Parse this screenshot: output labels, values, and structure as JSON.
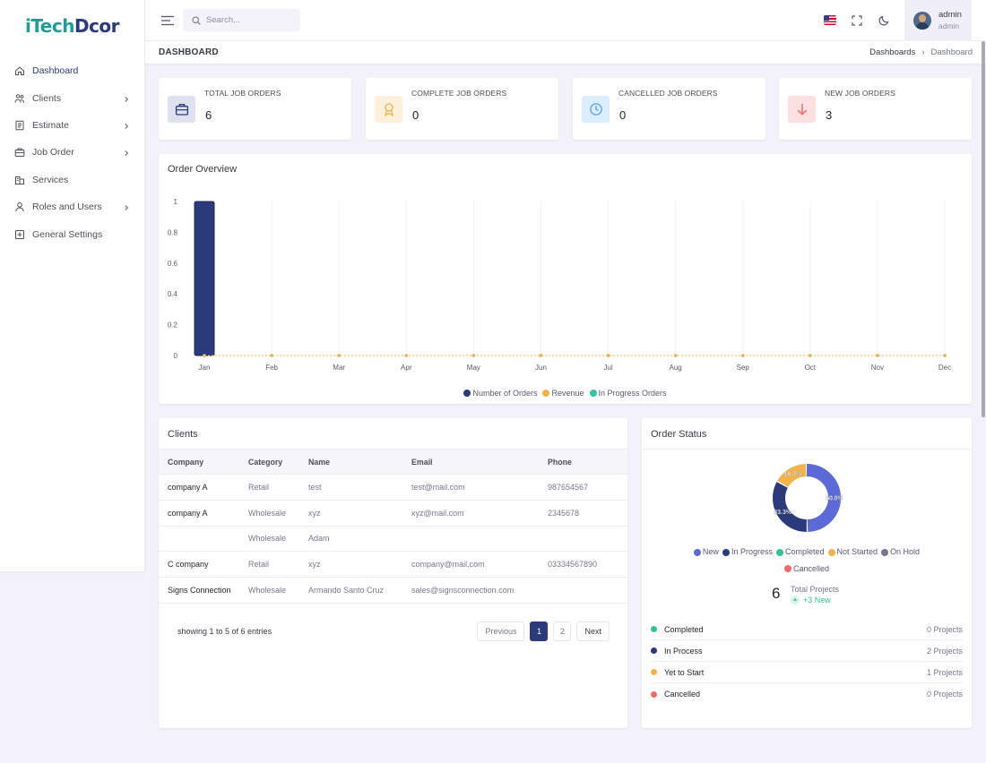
{
  "brand": {
    "logo_a": "iTech",
    "logo_b": "Dcor"
  },
  "sidebar": {
    "items": [
      {
        "label": "Dashboard",
        "icon": "home-icon",
        "has_submenu": false
      },
      {
        "label": "Clients",
        "icon": "users-icon",
        "has_submenu": true
      },
      {
        "label": "Estimate",
        "icon": "document-icon",
        "has_submenu": true
      },
      {
        "label": "Job Order",
        "icon": "briefcase-icon",
        "has_submenu": true
      },
      {
        "label": "Services",
        "icon": "building-icon",
        "has_submenu": false
      },
      {
        "label": "Roles and Users",
        "icon": "user-icon",
        "has_submenu": true
      },
      {
        "label": "General Settings",
        "icon": "plus-square-icon",
        "has_submenu": false
      }
    ]
  },
  "topbar": {
    "search_placeholder": "Search...",
    "user": {
      "name": "admin",
      "role": "admin"
    }
  },
  "page": {
    "title": "DASHBOARD",
    "breadcrumb": [
      "Dashboards",
      "Dashboard"
    ]
  },
  "stats": [
    {
      "label": "TOTAL JOB ORDERS",
      "value": "6",
      "icon": "briefcase-icon",
      "color": "#2a3a7a",
      "bg": "#dfe1ef"
    },
    {
      "label": "COMPLETE JOB ORDERS",
      "value": "0",
      "icon": "award-icon",
      "color": "#f1b44c",
      "bg": "#fdf0db"
    },
    {
      "label": "CANCELLED JOB ORDERS",
      "value": "0",
      "icon": "clock-icon",
      "color": "#50a5f1",
      "bg": "#dcedfc"
    },
    {
      "label": "NEW JOB ORDERS",
      "value": "3",
      "icon": "arrow-down-icon",
      "color": "#f46a6a",
      "bg": "#fde1e1"
    }
  ],
  "order_overview": {
    "title": "Order Overview",
    "legend": [
      {
        "name": "Number of Orders",
        "color": "#2a3a7a"
      },
      {
        "name": "Revenue",
        "color": "#f1b44c"
      },
      {
        "name": "In Progress Orders",
        "color": "#34c3a0"
      }
    ]
  },
  "chart_data": {
    "type": "bar",
    "categories": [
      "Jan",
      "Feb",
      "Mar",
      "Apr",
      "May",
      "Jun",
      "Jul",
      "Aug",
      "Sep",
      "Oct",
      "Nov",
      "Dec"
    ],
    "series": [
      {
        "name": "Number of Orders",
        "type": "bar",
        "color": "#2a3a7a",
        "values": [
          1,
          0,
          0,
          0,
          0,
          0,
          0,
          0,
          0,
          0,
          0,
          0
        ]
      },
      {
        "name": "Revenue",
        "type": "line",
        "color": "#f1b44c",
        "values": [
          0,
          0,
          0,
          0,
          0,
          0,
          0,
          0,
          0,
          0,
          0,
          0
        ]
      },
      {
        "name": "In Progress Orders",
        "type": "line",
        "color": "#34c3a0",
        "values": [
          0,
          0,
          0,
          0,
          0,
          0,
          0,
          0,
          0,
          0,
          0,
          0
        ]
      }
    ],
    "ylim": [
      0,
      1
    ],
    "yticks": [
      "0",
      "0.2",
      "0.4",
      "0.6",
      "0.8",
      "1"
    ],
    "grid": true,
    "legend_position": "bottom"
  },
  "clients": {
    "title": "Clients",
    "columns": [
      "Company",
      "Category",
      "Name",
      "Email",
      "Phone"
    ],
    "rows": [
      [
        "company A",
        "Retail",
        "test",
        "test@mail.com",
        "987654567"
      ],
      [
        "company A",
        "Wholesale",
        "xyz",
        "xyz@mail.com",
        "2345678"
      ],
      [
        "",
        "Wholesale",
        "Adam",
        "",
        ""
      ],
      [
        "C company",
        "Retail",
        "xyz",
        "company@mail.com",
        "03334567890"
      ],
      [
        "Signs Connection",
        "Wholesale",
        "Armando Santo Cruz",
        "sales@signsconnection.com",
        ""
      ]
    ],
    "entries_text": "showing 1 to 5 of 6 entries",
    "pager": {
      "prev": "Previous",
      "pages": [
        "1",
        "2"
      ],
      "active": "1",
      "next": "Next"
    }
  },
  "order_status": {
    "title": "Order Status",
    "donut": [
      {
        "name": "New",
        "value": 50.0,
        "label": "50.0%",
        "color": "#5b6ad6"
      },
      {
        "name": "In Progress",
        "value": 33.3,
        "label": "33.3%",
        "color": "#2a3a7a"
      },
      {
        "name": "Completed",
        "value": 0,
        "label": "",
        "color": "#34c38f"
      },
      {
        "name": "Not Started",
        "value": 16.7,
        "label": "16.7%",
        "color": "#f1b44c"
      },
      {
        "name": "On Hold",
        "value": 0,
        "label": "",
        "color": "#74788d"
      },
      {
        "name": "Cancelled",
        "value": 0,
        "label": "",
        "color": "#f46a6a"
      }
    ],
    "total_value": "6",
    "total_label": "Total Projects",
    "total_new": "+3 New",
    "list": [
      {
        "name": "Completed",
        "value": "0 Projects",
        "color": "#34c38f"
      },
      {
        "name": "In Process",
        "value": "2 Projects",
        "color": "#2a3a7a"
      },
      {
        "name": "Yet to Start",
        "value": "1 Projects",
        "color": "#f1b44c"
      },
      {
        "name": "Cancelled",
        "value": "0 Projects",
        "color": "#f46a6a"
      }
    ]
  }
}
